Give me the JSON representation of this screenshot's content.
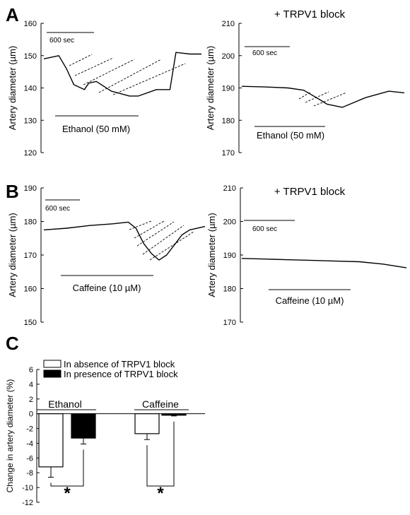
{
  "panels": {
    "A": {
      "letter": "A"
    },
    "B": {
      "letter": "B"
    },
    "C": {
      "letter": "C"
    }
  },
  "chart_data": [
    {
      "type": "line",
      "panel": "A",
      "ylabel": "Artery diameter (µm)",
      "yticks": [
        "120",
        "130",
        "140",
        "150",
        "160"
      ],
      "ylim": [
        120,
        160
      ],
      "scale_bar_label": "600 sec",
      "treatment_label": "Ethanol (50 mM)",
      "x_span_sec": 2100,
      "series": [
        {
          "x": [
            0,
            200,
            300,
            400,
            540,
            600,
            700,
            900,
            1140,
            1260,
            1500,
            1680,
            1760,
            1950,
            2100
          ],
          "y": [
            149,
            150,
            146,
            141,
            139.5,
            141.5,
            142,
            139,
            137.5,
            137.5,
            139.5,
            139.5,
            151,
            150.5,
            150.5
          ]
        }
      ]
    },
    {
      "type": "line",
      "panel": "A",
      "title": "+ TRPV1 block",
      "ylabel": "Artery diameter (µm)",
      "yticks": [
        "170",
        "180",
        "190",
        "200",
        "210"
      ],
      "ylim": [
        170,
        210
      ],
      "scale_bar_label": "600 sec",
      "treatment_label": "Ethanol (50 mM)",
      "x_span_sec": 2100,
      "series": [
        {
          "x": [
            0,
            300,
            600,
            800,
            1000,
            1100,
            1300,
            1600,
            1900,
            2100
          ],
          "y": [
            190.5,
            190.3,
            190,
            189.3,
            186.5,
            185,
            184,
            187,
            189,
            188.5
          ]
        }
      ]
    },
    {
      "type": "line",
      "panel": "B",
      "ylabel": "Artery diameter (µm)",
      "yticks": [
        "150",
        "160",
        "170",
        "180",
        "190"
      ],
      "ylim": [
        150,
        190
      ],
      "scale_bar_label": "600 sec",
      "treatment_label": "Caffeine (10 µM)",
      "x_span_sec": 2100,
      "series": [
        {
          "x": [
            0,
            300,
            600,
            900,
            1100,
            1200,
            1300,
            1400,
            1500,
            1600,
            1700,
            1800,
            1900,
            2100
          ],
          "y": [
            177.5,
            178,
            178.8,
            179.3,
            179.8,
            178,
            173.5,
            170.5,
            168.5,
            170,
            173,
            176,
            177.5,
            178.5
          ]
        }
      ]
    },
    {
      "type": "line",
      "panel": "B",
      "title": "+ TRPV1 block",
      "ylabel": "Artery diameter (µm)",
      "yticks": [
        "170",
        "180",
        "190",
        "200",
        "210"
      ],
      "ylim": [
        170,
        210
      ],
      "scale_bar_label": "600 sec",
      "treatment_label": "Caffeine (10 µM)",
      "x_span_sec": 2100,
      "series": [
        {
          "x": [
            0,
            300,
            600,
            900,
            1200,
            1500,
            1800,
            2100
          ],
          "y": [
            189,
            188.8,
            188.6,
            188.4,
            188.2,
            188,
            187.3,
            186.2
          ]
        }
      ]
    },
    {
      "type": "bar",
      "panel": "C",
      "ylabel": "Change in artery diameter (%)",
      "yticks": [
        "6",
        "4",
        "2",
        "0",
        "-2",
        "-4",
        "-6",
        "-8",
        "-10",
        "-12"
      ],
      "ylim": [
        -12,
        6
      ],
      "categories": [
        "Ethanol",
        "Caffeine"
      ],
      "series": [
        {
          "name": "In absence of TRPV1 block",
          "values": [
            -7.2,
            -2.7
          ],
          "errors": [
            1.4,
            0.8
          ]
        },
        {
          "name": "In presence of TRPV1 block",
          "values": [
            -3.3,
            -0.2
          ],
          "errors": [
            0.8,
            0.1
          ]
        }
      ],
      "significance_marker": "*"
    }
  ]
}
